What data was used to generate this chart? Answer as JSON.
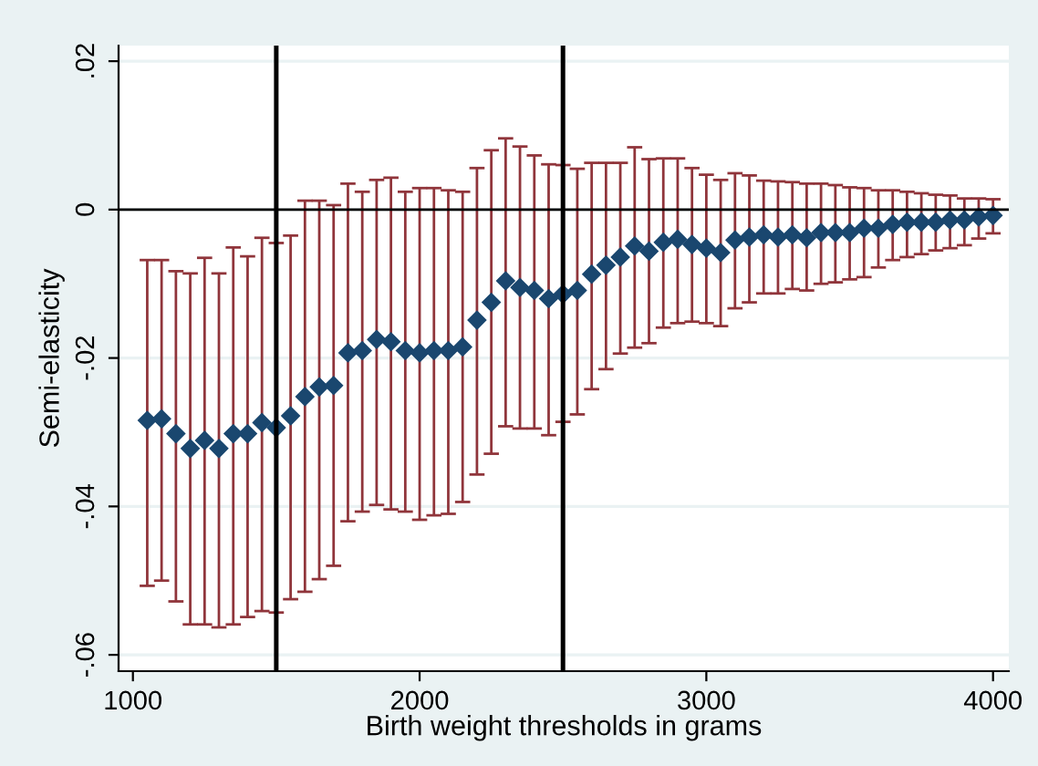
{
  "chart_data": {
    "type": "scatter",
    "xlabel": "Birth weight thresholds in grams",
    "ylabel": "Semi-elasticity",
    "x": [
      1050,
      1100,
      1150,
      1200,
      1250,
      1300,
      1350,
      1400,
      1450,
      1500,
      1550,
      1600,
      1650,
      1700,
      1750,
      1800,
      1850,
      1900,
      1950,
      2000,
      2050,
      2100,
      2150,
      2200,
      2250,
      2300,
      2350,
      2400,
      2450,
      2500,
      2550,
      2600,
      2650,
      2700,
      2750,
      2800,
      2850,
      2900,
      2950,
      3000,
      3050,
      3100,
      3150,
      3200,
      3250,
      3300,
      3350,
      3400,
      3450,
      3500,
      3550,
      3600,
      3650,
      3700,
      3750,
      3800,
      3850,
      3900,
      3950,
      4000
    ],
    "series": [
      {
        "color": "#1a476f",
        "values": [
          -0.0284,
          -0.0282,
          -0.0302,
          -0.0322,
          -0.0311,
          -0.0322,
          -0.0302,
          -0.0302,
          -0.0287,
          -0.0294,
          -0.0278,
          -0.0252,
          -0.0239,
          -0.0237,
          -0.0193,
          -0.019,
          -0.0175,
          -0.0178,
          -0.019,
          -0.0193,
          -0.019,
          -0.019,
          -0.0185,
          -0.0149,
          -0.0125,
          -0.0096,
          -0.0105,
          -0.0109,
          -0.012,
          -0.0114,
          -0.0109,
          -0.0087,
          -0.0075,
          -0.0064,
          -0.0049,
          -0.0056,
          -0.0044,
          -0.004,
          -0.0047,
          -0.0052,
          -0.0058,
          -0.0041,
          -0.0037,
          -0.0034,
          -0.0037,
          -0.0034,
          -0.0038,
          -0.0031,
          -0.0031,
          -0.0031,
          -0.0025,
          -0.0025,
          -0.002,
          -0.0017,
          -0.0017,
          -0.0017,
          -0.0014,
          -0.0014,
          -0.001,
          -0.0008
        ],
        "errors": [
          [
            -0.0507,
            -0.0068
          ],
          [
            -0.05,
            -0.0068
          ],
          [
            -0.0528,
            -0.0083
          ],
          [
            -0.0559,
            -0.0086
          ],
          [
            -0.0559,
            -0.0065
          ],
          [
            -0.0563,
            -0.0086
          ],
          [
            -0.0559,
            -0.0051
          ],
          [
            -0.0549,
            -0.0063
          ],
          [
            -0.0541,
            -0.0038
          ],
          [
            -0.0543,
            -0.0045
          ],
          [
            -0.0525,
            -0.0035
          ],
          [
            -0.0515,
            0.0012
          ],
          [
            -0.0498,
            0.0012
          ],
          [
            -0.048,
            0.0006
          ],
          [
            -0.042,
            0.0035
          ],
          [
            -0.0407,
            0.0024
          ],
          [
            -0.0398,
            0.004
          ],
          [
            -0.0404,
            0.0043
          ],
          [
            -0.0407,
            0.0024
          ],
          [
            -0.0418,
            0.0029
          ],
          [
            -0.0412,
            0.0029
          ],
          [
            -0.041,
            0.0026
          ],
          [
            -0.0394,
            0.0024
          ],
          [
            -0.0357,
            0.0056
          ],
          [
            -0.0329,
            0.008
          ],
          [
            -0.0292,
            0.0096
          ],
          [
            -0.0295,
            0.0085
          ],
          [
            -0.0295,
            0.0073
          ],
          [
            -0.0304,
            0.0061
          ],
          [
            -0.0286,
            0.006
          ],
          [
            -0.0276,
            0.0055
          ],
          [
            -0.0242,
            0.0063
          ],
          [
            -0.0215,
            0.0063
          ],
          [
            -0.0194,
            0.0063
          ],
          [
            -0.0186,
            0.0084
          ],
          [
            -0.018,
            0.0068
          ],
          [
            -0.0159,
            0.0069
          ],
          [
            -0.0153,
            0.0069
          ],
          [
            -0.0151,
            0.0056
          ],
          [
            -0.0153,
            0.0047
          ],
          [
            -0.0157,
            0.004
          ],
          [
            -0.0133,
            0.0049
          ],
          [
            -0.0125,
            0.0046
          ],
          [
            -0.0113,
            0.0039
          ],
          [
            -0.0113,
            0.0038
          ],
          [
            -0.0107,
            0.0037
          ],
          [
            -0.0109,
            0.0035
          ],
          [
            -0.01,
            0.0035
          ],
          [
            -0.0098,
            0.0033
          ],
          [
            -0.0094,
            0.003
          ],
          [
            -0.0091,
            0.0029
          ],
          [
            -0.0078,
            0.0026
          ],
          [
            -0.0068,
            0.0026
          ],
          [
            -0.0064,
            0.0024
          ],
          [
            -0.006,
            0.0022
          ],
          [
            -0.0055,
            0.002
          ],
          [
            -0.0052,
            0.0019
          ],
          [
            -0.0048,
            0.0015
          ],
          [
            -0.0039,
            0.0015
          ],
          [
            -0.0032,
            0.0014
          ]
        ]
      }
    ],
    "marker": "diamond",
    "xlim": [
      950,
      4055
    ],
    "xticks": [
      1000,
      2000,
      3000,
      4000
    ],
    "ylim": [
      -0.0622,
      0.0221
    ],
    "yticks": [
      {
        "value": -0.06,
        "label": "-.06"
      },
      {
        "value": -0.04,
        "label": "-.04"
      },
      {
        "value": -0.02,
        "label": "-.02"
      },
      {
        "value": 0,
        "label": "0"
      },
      {
        "value": 0.02,
        "label": ".02"
      }
    ],
    "grid": "y",
    "ref_lines": [
      {
        "axis": "x",
        "value": 1500,
        "color": "#000000"
      },
      {
        "axis": "x",
        "value": 2500,
        "color": "#000000"
      },
      {
        "axis": "y",
        "value": 0,
        "color": "#000000"
      }
    ]
  }
}
